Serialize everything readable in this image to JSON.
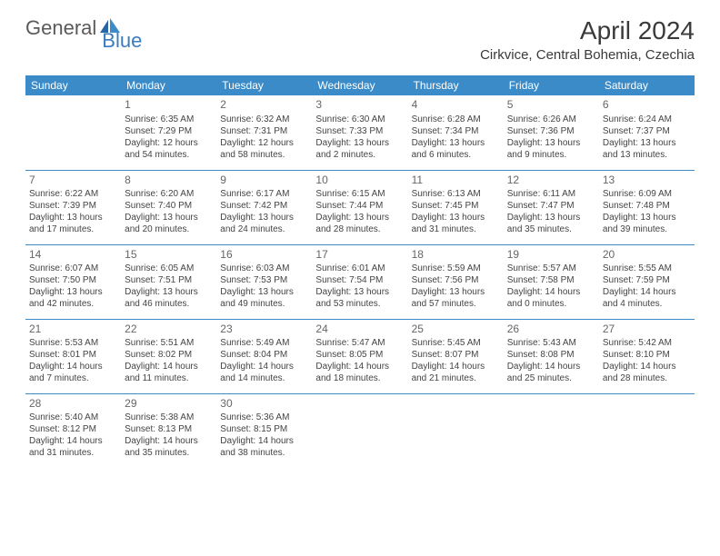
{
  "brand": {
    "part1": "General",
    "part2": "Blue"
  },
  "title": "April 2024",
  "location": "Cirkvice, Central Bohemia, Czechia",
  "colors": {
    "header_bg": "#3b8bc8",
    "header_fg": "#ffffff",
    "row_border": "#3b8bc8",
    "text": "#444444",
    "logo_gray": "#5a5a5a",
    "logo_blue": "#3b7bbf"
  },
  "weekdays": [
    "Sunday",
    "Monday",
    "Tuesday",
    "Wednesday",
    "Thursday",
    "Friday",
    "Saturday"
  ],
  "weeks": [
    [
      null,
      {
        "n": "1",
        "sr": "Sunrise: 6:35 AM",
        "ss": "Sunset: 7:29 PM",
        "d1": "Daylight: 12 hours",
        "d2": "and 54 minutes."
      },
      {
        "n": "2",
        "sr": "Sunrise: 6:32 AM",
        "ss": "Sunset: 7:31 PM",
        "d1": "Daylight: 12 hours",
        "d2": "and 58 minutes."
      },
      {
        "n": "3",
        "sr": "Sunrise: 6:30 AM",
        "ss": "Sunset: 7:33 PM",
        "d1": "Daylight: 13 hours",
        "d2": "and 2 minutes."
      },
      {
        "n": "4",
        "sr": "Sunrise: 6:28 AM",
        "ss": "Sunset: 7:34 PM",
        "d1": "Daylight: 13 hours",
        "d2": "and 6 minutes."
      },
      {
        "n": "5",
        "sr": "Sunrise: 6:26 AM",
        "ss": "Sunset: 7:36 PM",
        "d1": "Daylight: 13 hours",
        "d2": "and 9 minutes."
      },
      {
        "n": "6",
        "sr": "Sunrise: 6:24 AM",
        "ss": "Sunset: 7:37 PM",
        "d1": "Daylight: 13 hours",
        "d2": "and 13 minutes."
      }
    ],
    [
      {
        "n": "7",
        "sr": "Sunrise: 6:22 AM",
        "ss": "Sunset: 7:39 PM",
        "d1": "Daylight: 13 hours",
        "d2": "and 17 minutes."
      },
      {
        "n": "8",
        "sr": "Sunrise: 6:20 AM",
        "ss": "Sunset: 7:40 PM",
        "d1": "Daylight: 13 hours",
        "d2": "and 20 minutes."
      },
      {
        "n": "9",
        "sr": "Sunrise: 6:17 AM",
        "ss": "Sunset: 7:42 PM",
        "d1": "Daylight: 13 hours",
        "d2": "and 24 minutes."
      },
      {
        "n": "10",
        "sr": "Sunrise: 6:15 AM",
        "ss": "Sunset: 7:44 PM",
        "d1": "Daylight: 13 hours",
        "d2": "and 28 minutes."
      },
      {
        "n": "11",
        "sr": "Sunrise: 6:13 AM",
        "ss": "Sunset: 7:45 PM",
        "d1": "Daylight: 13 hours",
        "d2": "and 31 minutes."
      },
      {
        "n": "12",
        "sr": "Sunrise: 6:11 AM",
        "ss": "Sunset: 7:47 PM",
        "d1": "Daylight: 13 hours",
        "d2": "and 35 minutes."
      },
      {
        "n": "13",
        "sr": "Sunrise: 6:09 AM",
        "ss": "Sunset: 7:48 PM",
        "d1": "Daylight: 13 hours",
        "d2": "and 39 minutes."
      }
    ],
    [
      {
        "n": "14",
        "sr": "Sunrise: 6:07 AM",
        "ss": "Sunset: 7:50 PM",
        "d1": "Daylight: 13 hours",
        "d2": "and 42 minutes."
      },
      {
        "n": "15",
        "sr": "Sunrise: 6:05 AM",
        "ss": "Sunset: 7:51 PM",
        "d1": "Daylight: 13 hours",
        "d2": "and 46 minutes."
      },
      {
        "n": "16",
        "sr": "Sunrise: 6:03 AM",
        "ss": "Sunset: 7:53 PM",
        "d1": "Daylight: 13 hours",
        "d2": "and 49 minutes."
      },
      {
        "n": "17",
        "sr": "Sunrise: 6:01 AM",
        "ss": "Sunset: 7:54 PM",
        "d1": "Daylight: 13 hours",
        "d2": "and 53 minutes."
      },
      {
        "n": "18",
        "sr": "Sunrise: 5:59 AM",
        "ss": "Sunset: 7:56 PM",
        "d1": "Daylight: 13 hours",
        "d2": "and 57 minutes."
      },
      {
        "n": "19",
        "sr": "Sunrise: 5:57 AM",
        "ss": "Sunset: 7:58 PM",
        "d1": "Daylight: 14 hours",
        "d2": "and 0 minutes."
      },
      {
        "n": "20",
        "sr": "Sunrise: 5:55 AM",
        "ss": "Sunset: 7:59 PM",
        "d1": "Daylight: 14 hours",
        "d2": "and 4 minutes."
      }
    ],
    [
      {
        "n": "21",
        "sr": "Sunrise: 5:53 AM",
        "ss": "Sunset: 8:01 PM",
        "d1": "Daylight: 14 hours",
        "d2": "and 7 minutes."
      },
      {
        "n": "22",
        "sr": "Sunrise: 5:51 AM",
        "ss": "Sunset: 8:02 PM",
        "d1": "Daylight: 14 hours",
        "d2": "and 11 minutes."
      },
      {
        "n": "23",
        "sr": "Sunrise: 5:49 AM",
        "ss": "Sunset: 8:04 PM",
        "d1": "Daylight: 14 hours",
        "d2": "and 14 minutes."
      },
      {
        "n": "24",
        "sr": "Sunrise: 5:47 AM",
        "ss": "Sunset: 8:05 PM",
        "d1": "Daylight: 14 hours",
        "d2": "and 18 minutes."
      },
      {
        "n": "25",
        "sr": "Sunrise: 5:45 AM",
        "ss": "Sunset: 8:07 PM",
        "d1": "Daylight: 14 hours",
        "d2": "and 21 minutes."
      },
      {
        "n": "26",
        "sr": "Sunrise: 5:43 AM",
        "ss": "Sunset: 8:08 PM",
        "d1": "Daylight: 14 hours",
        "d2": "and 25 minutes."
      },
      {
        "n": "27",
        "sr": "Sunrise: 5:42 AM",
        "ss": "Sunset: 8:10 PM",
        "d1": "Daylight: 14 hours",
        "d2": "and 28 minutes."
      }
    ],
    [
      {
        "n": "28",
        "sr": "Sunrise: 5:40 AM",
        "ss": "Sunset: 8:12 PM",
        "d1": "Daylight: 14 hours",
        "d2": "and 31 minutes."
      },
      {
        "n": "29",
        "sr": "Sunrise: 5:38 AM",
        "ss": "Sunset: 8:13 PM",
        "d1": "Daylight: 14 hours",
        "d2": "and 35 minutes."
      },
      {
        "n": "30",
        "sr": "Sunrise: 5:36 AM",
        "ss": "Sunset: 8:15 PM",
        "d1": "Daylight: 14 hours",
        "d2": "and 38 minutes."
      },
      null,
      null,
      null,
      null
    ]
  ]
}
